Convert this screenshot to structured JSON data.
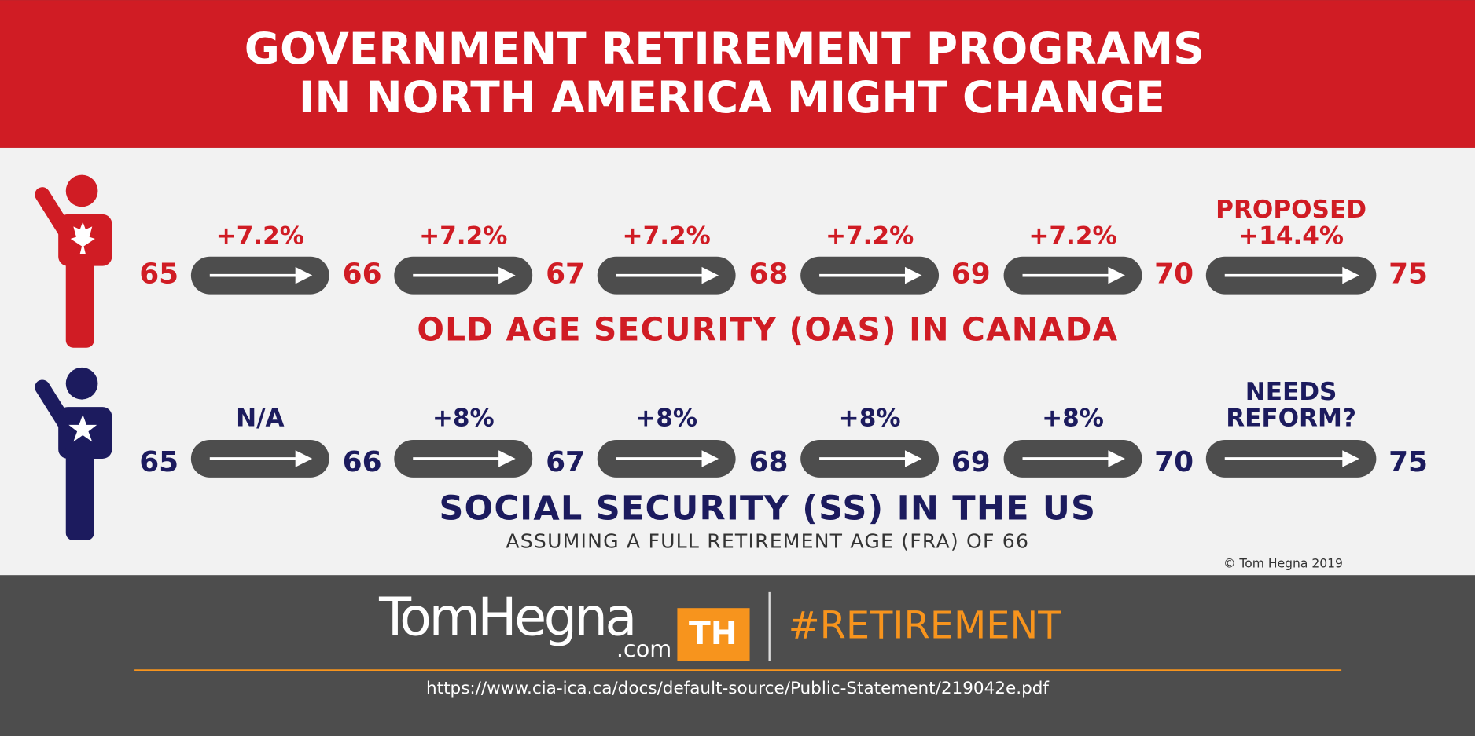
{
  "header": {
    "title_lines": [
      "GOVERNMENT RETIREMENT PROGRAMS",
      "IN NORTH AMERICA MIGHT CHANGE"
    ]
  },
  "rows": [
    {
      "ages": [
        "65",
        "66",
        "67",
        "68",
        "69",
        "70",
        "75"
      ],
      "changes": [
        [
          "+7.2%"
        ],
        [
          "+7.2%"
        ],
        [
          "+7.2%"
        ],
        [
          "+7.2%"
        ],
        [
          "+7.2%"
        ],
        [
          "PROPOSED",
          "+14.4%"
        ]
      ],
      "label": "OLD AGE SECURITY (OAS) IN CANADA"
    },
    {
      "ages": [
        "65",
        "66",
        "67",
        "68",
        "69",
        "70",
        "75"
      ],
      "changes": [
        [
          "N/A"
        ],
        [
          "+8%"
        ],
        [
          "+8%"
        ],
        [
          "+8%"
        ],
        [
          "+8%"
        ],
        [
          "NEEDS",
          "REFORM?"
        ]
      ],
      "label": "SOCIAL SECURITY (SS) IN THE US"
    }
  ],
  "note": "ASSUMING A FULL RETIREMENT AGE (FRA) OF 66",
  "copyright": "© Tom Hegna 2019",
  "footer": {
    "brand": "TomHegna",
    "brand_suffix": ".com",
    "logo": "TH",
    "hashtag": "#RETIREMENT",
    "url": "https://www.cia-ica.ca/docs/default-source/Public-Statement/219042e.pdf"
  }
}
